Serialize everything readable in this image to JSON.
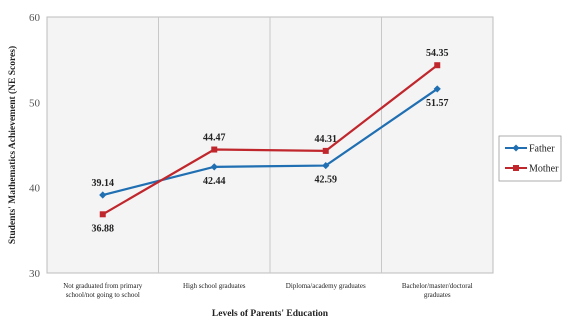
{
  "chart_data": {
    "type": "line",
    "ylabel": "Students' Mathematics Achievement (NE Scores)",
    "xlabel": "Levels of Parents' Education",
    "ylim": [
      30,
      60
    ],
    "yticks": [
      30,
      40,
      50,
      60
    ],
    "grid": "vertical lines between categories",
    "legend_position": "right",
    "categories": [
      [
        "Not graduated from  primary",
        "school/not going to  school"
      ],
      [
        "High  school graduates"
      ],
      [
        "Diploma/academy  graduates"
      ],
      [
        "Bachelor/master/doctoral",
        "graduates"
      ]
    ],
    "series": [
      {
        "name": "Father",
        "color": "#1f6fb2",
        "marker": "diamond",
        "values": [
          39.14,
          42.44,
          42.59,
          51.57
        ],
        "labels": [
          "39.14",
          "42.44",
          "42.59",
          "51.57"
        ],
        "label_side": [
          "above",
          "below",
          "below",
          "below"
        ]
      },
      {
        "name": "Mother",
        "color": "#c0272d",
        "marker": "square",
        "values": [
          36.88,
          44.47,
          44.31,
          54.35
        ],
        "labels": [
          "36.88",
          "44.47",
          "44.31",
          "54.35"
        ],
        "label_side": [
          "below",
          "above",
          "above",
          "above"
        ]
      }
    ]
  }
}
